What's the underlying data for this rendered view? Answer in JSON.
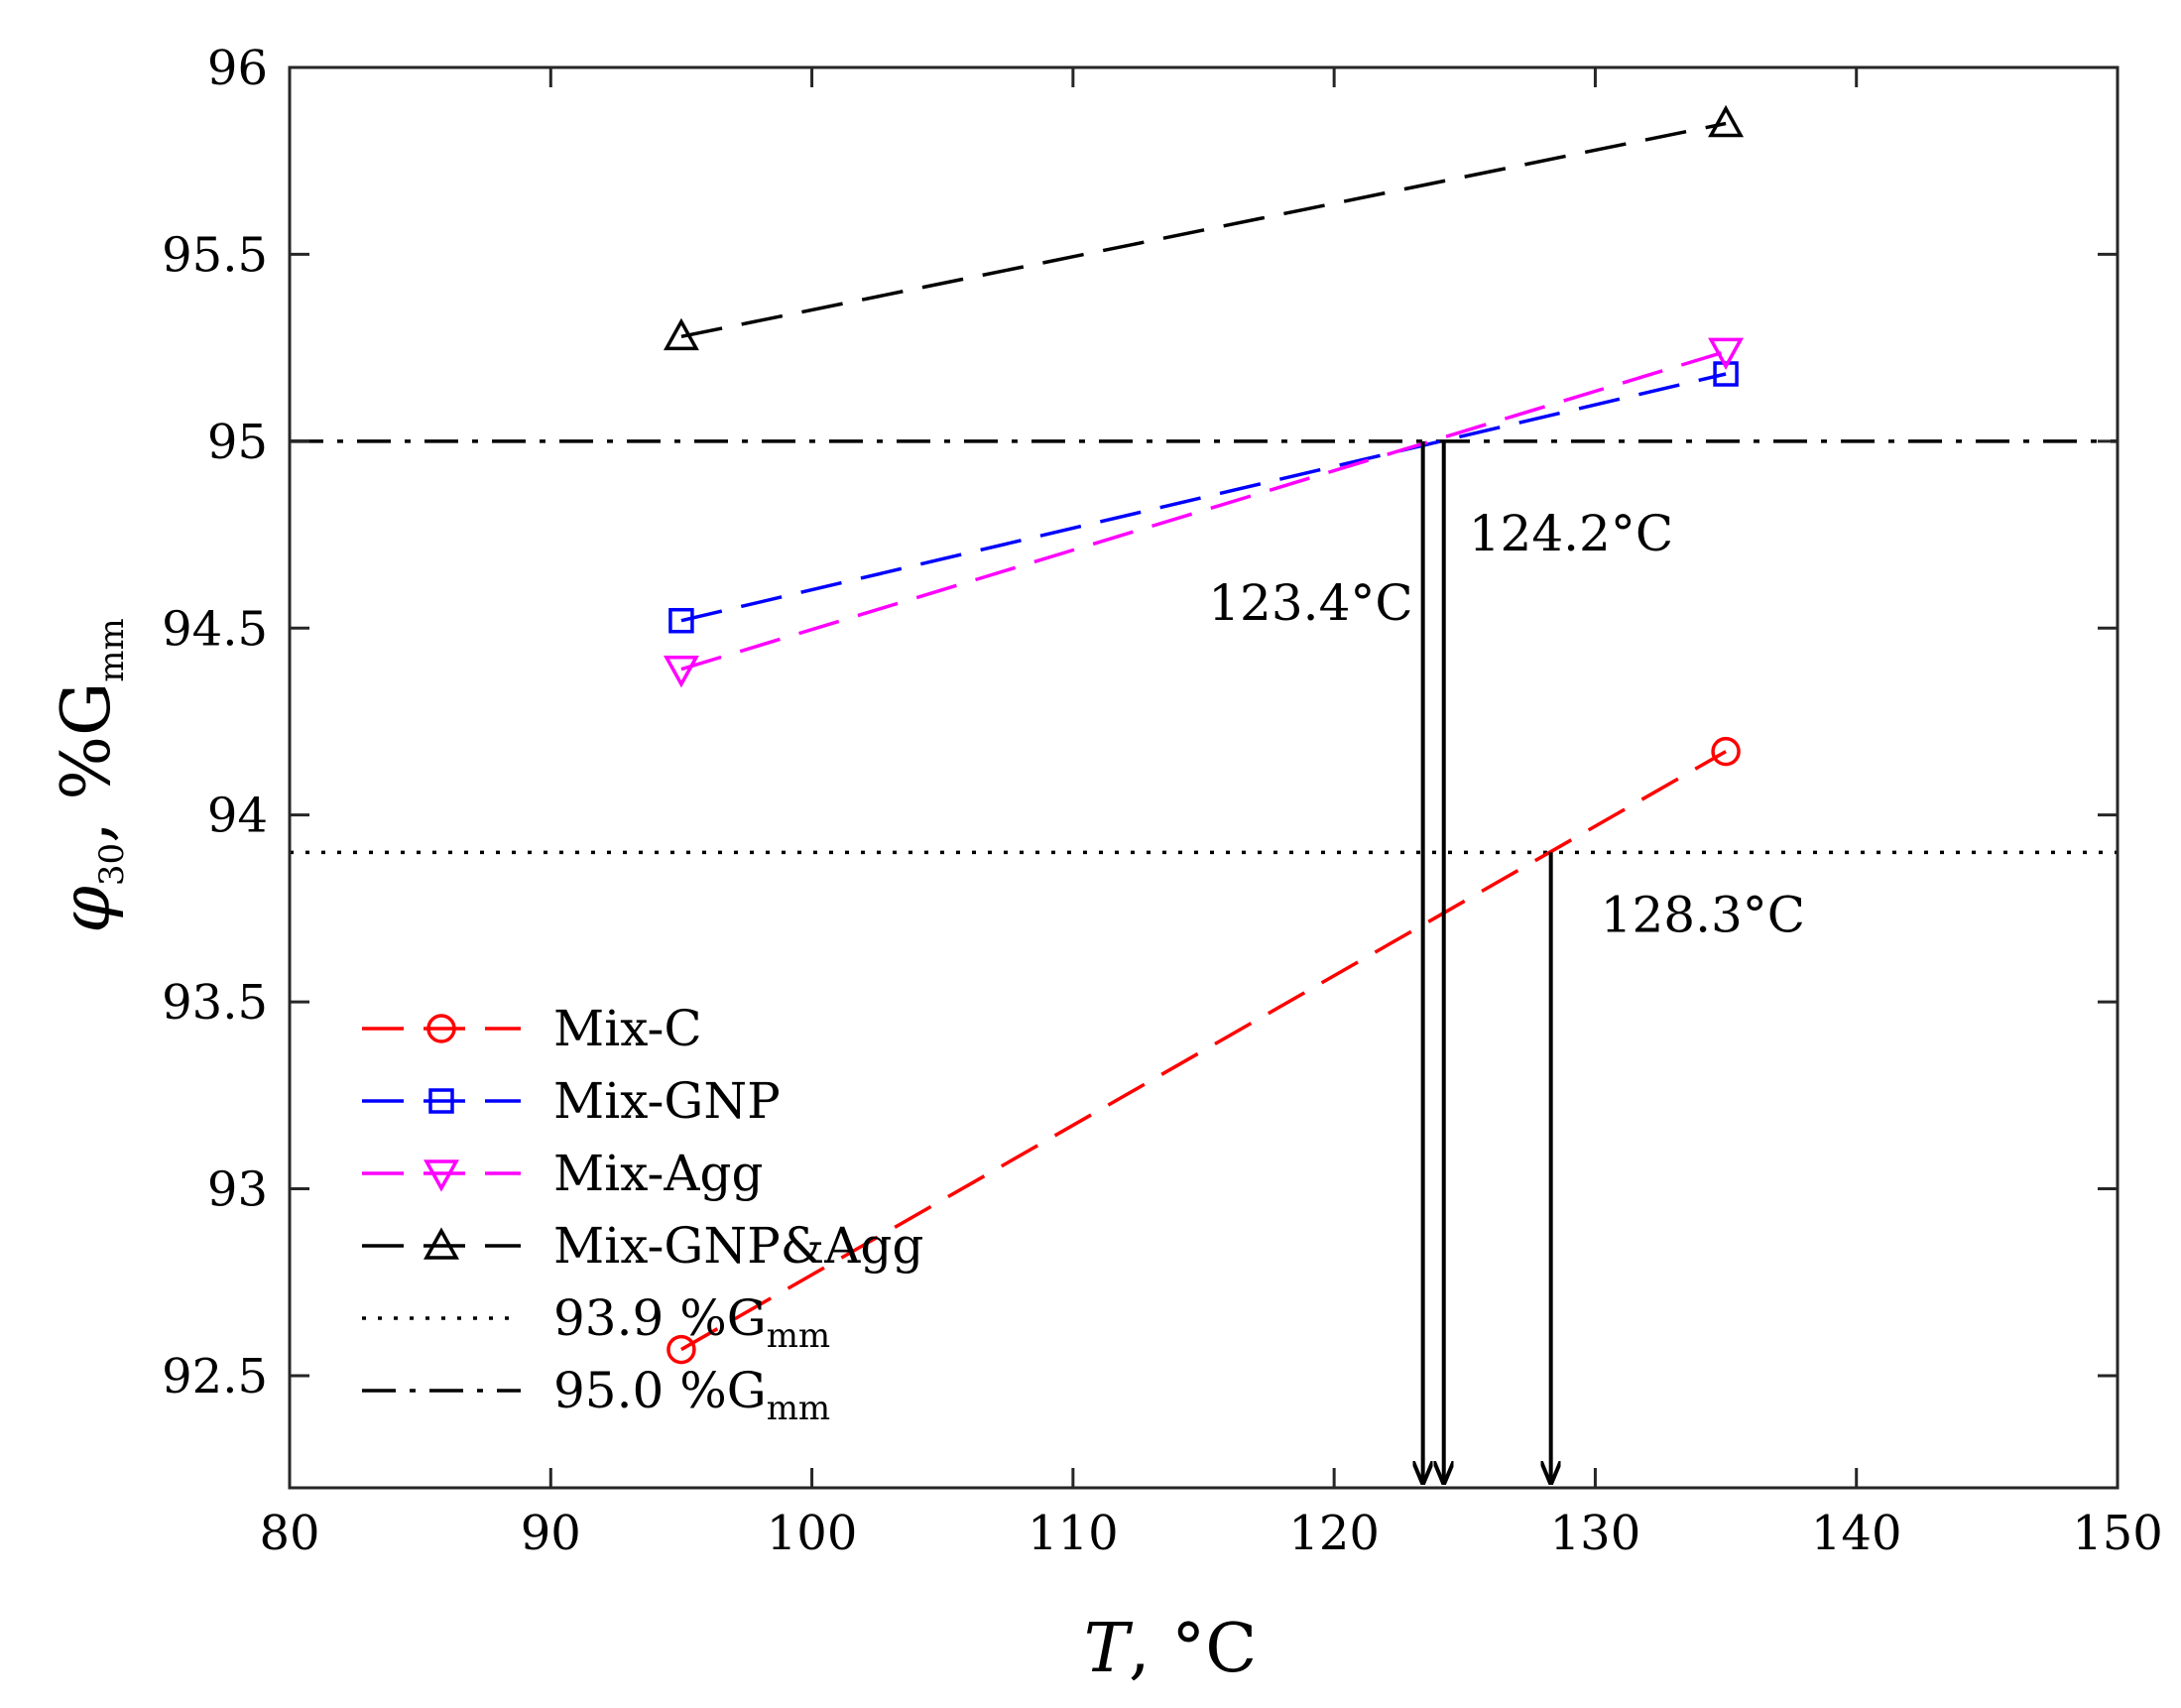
{
  "chart_data": {
    "type": "line",
    "xlabel": {
      "main": "T",
      "rest": ", °C"
    },
    "ylabel": {
      "prefix": "φ",
      "sub": "30",
      "mid": ", %G",
      "sub2": "mm"
    },
    "xlim": [
      80,
      150
    ],
    "ylim": [
      92.2,
      96
    ],
    "xticks": [
      "80",
      "90",
      "100",
      "110",
      "120",
      "130",
      "140",
      "150"
    ],
    "yticks": [
      "92.5",
      "93",
      "93.5",
      "94",
      "94.5",
      "95",
      "95.5",
      "96"
    ],
    "series": [
      {
        "name": "Mix-C",
        "color": "#ff0000",
        "marker": "circle",
        "x": [
          95,
          135
        ],
        "y": [
          92.57,
          94.17
        ]
      },
      {
        "name": "Mix-GNP",
        "color": "#0000ff",
        "marker": "square",
        "x": [
          95,
          135
        ],
        "y": [
          94.52,
          95.18
        ]
      },
      {
        "name": "Mix-Agg",
        "color": "#ff00ff",
        "marker": "triangle-down",
        "x": [
          95,
          135
        ],
        "y": [
          94.39,
          95.24
        ]
      },
      {
        "name": "Mix-GNP&Agg",
        "color": "#000000",
        "marker": "triangle-up",
        "x": [
          95,
          135
        ],
        "y": [
          95.28,
          95.85
        ]
      }
    ],
    "reference_lines": [
      {
        "y": 93.9,
        "style": "dotted",
        "label_value": "93.9 %G",
        "label_sub": "mm"
      },
      {
        "y": 95.0,
        "style": "dashdot",
        "label_value": "95.0 %G",
        "label_sub": "mm"
      }
    ],
    "annotations": [
      {
        "text": "123.4°C",
        "x": 123.4,
        "y_from": 95.0
      },
      {
        "text": "124.2°C",
        "x": 124.2,
        "y_from": 95.0
      },
      {
        "text": "128.3°C",
        "x": 128.3,
        "y_from": 93.9
      }
    ],
    "legend_position": "lower-left",
    "grid": false
  }
}
